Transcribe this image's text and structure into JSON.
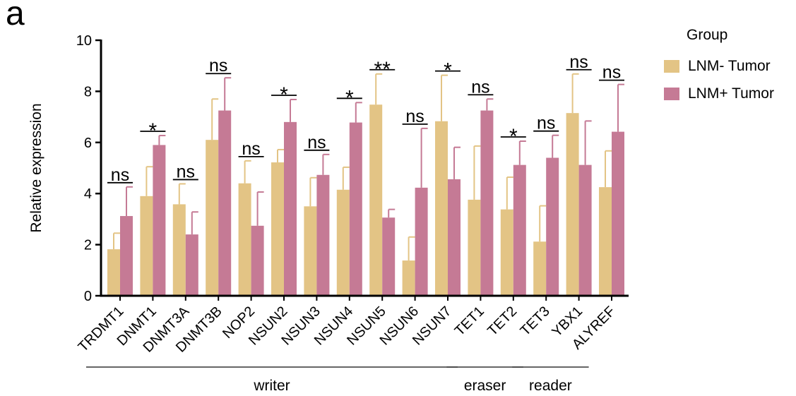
{
  "panel_label": "a",
  "chart_data": {
    "type": "bar",
    "title": "",
    "xlabel": "",
    "ylabel": "Relative expression",
    "ylim": [
      0,
      10
    ],
    "yticks": [
      0,
      2,
      4,
      6,
      8,
      10
    ],
    "categories": [
      "TRDMT1",
      "DNMT1",
      "DNMT3A",
      "DNMT3B",
      "NOP2",
      "NSUN2",
      "NSUN3",
      "NSUN4",
      "NSUN5",
      "NSUN6",
      "NSUN7",
      "TET1",
      "TET2",
      "TET3",
      "YBX1",
      "ALYREF"
    ],
    "series": [
      {
        "name": "LNM- Tumor",
        "color": "#e3c485",
        "values": [
          1.82,
          3.9,
          3.58,
          6.1,
          4.4,
          5.22,
          3.5,
          4.15,
          7.48,
          1.38,
          6.83,
          3.76,
          3.38,
          2.12,
          7.15,
          4.25
        ],
        "errors": [
          0.63,
          1.15,
          0.8,
          1.6,
          0.88,
          0.5,
          1.12,
          0.88,
          1.2,
          0.92,
          1.8,
          2.1,
          1.26,
          1.4,
          1.53,
          1.42
        ]
      },
      {
        "name": "LNM+ Tumor",
        "color": "#c57a95",
        "values": [
          3.12,
          5.9,
          2.4,
          7.25,
          2.74,
          6.8,
          4.73,
          6.78,
          3.06,
          4.23,
          4.56,
          7.25,
          5.12,
          5.4,
          5.12,
          6.42
        ],
        "errors": [
          1.14,
          0.37,
          0.88,
          1.28,
          1.32,
          0.88,
          0.8,
          0.78,
          0.32,
          2.32,
          1.25,
          0.45,
          0.93,
          0.88,
          1.72,
          1.85
        ]
      }
    ],
    "significance": [
      "ns",
      "*",
      "ns",
      "ns",
      "ns",
      "*",
      "ns",
      "*",
      "**",
      "ns",
      "*",
      "ns",
      "*",
      "ns",
      "ns",
      "ns"
    ],
    "groups": [
      {
        "label": "writer",
        "from": 0,
        "to": 10
      },
      {
        "label": "eraser",
        "from": 11,
        "to": 12
      },
      {
        "label": "reader",
        "from": 13,
        "to": 14
      }
    ],
    "legend": {
      "title": "Group",
      "position": "top-right"
    },
    "grid": false
  }
}
